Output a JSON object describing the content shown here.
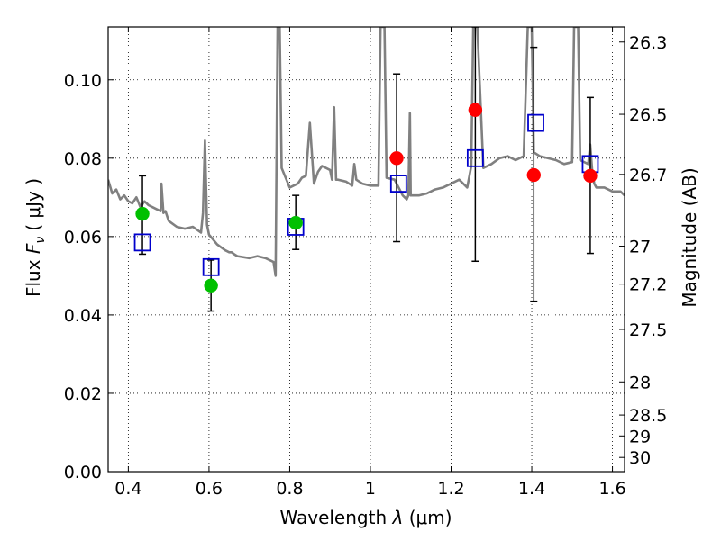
{
  "chart_data": {
    "type": "scatter",
    "xlabel_prefix": "Wavelength",
    "xlabel_symbol": "λ",
    "xlabel_unit": "(μm)",
    "ylabel_prefix": "Flux",
    "ylabel_symbol": "F",
    "ylabel_subscript": "ν",
    "ylabel_unit": "( μJy )",
    "y2label": "Magnitude (AB)",
    "xlim": [
      0.35,
      1.63
    ],
    "ylim": [
      0.0,
      0.1135
    ],
    "grid": true,
    "xticks": [
      {
        "v": 0.4,
        "label": "0.4"
      },
      {
        "v": 0.6,
        "label": "0.6"
      },
      {
        "v": 0.8,
        "label": "0.8"
      },
      {
        "v": 1.0,
        "label": "1"
      },
      {
        "v": 1.2,
        "label": "1.2"
      },
      {
        "v": 1.4,
        "label": "1.4"
      },
      {
        "v": 1.6,
        "label": "1.6"
      }
    ],
    "yticks": [
      {
        "v": 0.0,
        "label": "0.00"
      },
      {
        "v": 0.02,
        "label": "0.02"
      },
      {
        "v": 0.04,
        "label": "0.04"
      },
      {
        "v": 0.06,
        "label": "0.06"
      },
      {
        "v": 0.08,
        "label": "0.08"
      },
      {
        "v": 0.1,
        "label": "0.10"
      }
    ],
    "y2ticks": [
      {
        "mag": 26.3,
        "label": "26.3"
      },
      {
        "mag": 26.5,
        "label": "26.5"
      },
      {
        "mag": 26.7,
        "label": "26.7"
      },
      {
        "mag": 27,
        "label": "27"
      },
      {
        "mag": 27.2,
        "label": "27.2"
      },
      {
        "mag": 27.5,
        "label": "27.5"
      },
      {
        "mag": 28,
        "label": "28"
      },
      {
        "mag": 28.5,
        "label": "28.5"
      },
      {
        "mag": 29,
        "label": "29"
      },
      {
        "mag": 30,
        "label": "30"
      }
    ],
    "model_spectrum": {
      "color": "#808080",
      "x": [
        0.35,
        0.36,
        0.37,
        0.38,
        0.39,
        0.4,
        0.41,
        0.42,
        0.43,
        0.44,
        0.45,
        0.46,
        0.47,
        0.48,
        0.482,
        0.487,
        0.492,
        0.5,
        0.52,
        0.54,
        0.56,
        0.58,
        0.585,
        0.59,
        0.595,
        0.6,
        0.62,
        0.64,
        0.65,
        0.656,
        0.662,
        0.67,
        0.7,
        0.72,
        0.74,
        0.76,
        0.765,
        0.77,
        0.775,
        0.78,
        0.8,
        0.82,
        0.83,
        0.84,
        0.85,
        0.86,
        0.87,
        0.88,
        0.9,
        0.905,
        0.91,
        0.915,
        0.92,
        0.94,
        0.955,
        0.96,
        0.965,
        0.98,
        1.0,
        1.02,
        1.025,
        1.03,
        1.035,
        1.04,
        1.06,
        1.08,
        1.09,
        1.094,
        1.098,
        1.1,
        1.12,
        1.14,
        1.16,
        1.18,
        1.2,
        1.22,
        1.24,
        1.25,
        1.255,
        1.26,
        1.265,
        1.28,
        1.3,
        1.32,
        1.34,
        1.36,
        1.38,
        1.39,
        1.395,
        1.4,
        1.405,
        1.42,
        1.44,
        1.46,
        1.48,
        1.5,
        1.505,
        1.51,
        1.515,
        1.52,
        1.54,
        1.545,
        1.55,
        1.555,
        1.56,
        1.58,
        1.6,
        1.62,
        1.63
      ],
      "y": [
        0.0745,
        0.071,
        0.072,
        0.0695,
        0.0705,
        0.069,
        0.0685,
        0.07,
        0.0675,
        0.069,
        0.068,
        0.0675,
        0.067,
        0.0665,
        0.0735,
        0.066,
        0.0665,
        0.064,
        0.0625,
        0.062,
        0.0625,
        0.061,
        0.066,
        0.0845,
        0.063,
        0.0605,
        0.058,
        0.0565,
        0.056,
        0.056,
        0.0555,
        0.055,
        0.0545,
        0.055,
        0.0545,
        0.0535,
        0.05,
        0.1135,
        0.1135,
        0.0775,
        0.0725,
        0.0735,
        0.075,
        0.0755,
        0.089,
        0.0735,
        0.0765,
        0.078,
        0.077,
        0.0745,
        0.093,
        0.0745,
        0.0745,
        0.074,
        0.073,
        0.0785,
        0.0745,
        0.0735,
        0.073,
        0.073,
        0.1135,
        0.1135,
        0.1135,
        0.075,
        0.0745,
        0.0705,
        0.0695,
        0.0705,
        0.0915,
        0.0705,
        0.0705,
        0.071,
        0.072,
        0.0725,
        0.0735,
        0.0745,
        0.0725,
        0.078,
        0.1135,
        0.1135,
        0.1135,
        0.0775,
        0.0785,
        0.08,
        0.0805,
        0.0795,
        0.0805,
        0.1135,
        0.1135,
        0.1135,
        0.0815,
        0.0805,
        0.08,
        0.0795,
        0.0785,
        0.079,
        0.1135,
        0.1135,
        0.1135,
        0.0795,
        0.0785,
        0.0835,
        0.0765,
        0.0735,
        0.0725,
        0.0725,
        0.0715,
        0.0715,
        0.0705
      ]
    },
    "observed_points": [
      {
        "x": 0.435,
        "y": 0.0658,
        "yerr_low": 0.0555,
        "yerr_high": 0.0755,
        "color": "#00c000"
      },
      {
        "x": 0.605,
        "y": 0.0475,
        "yerr_low": 0.041,
        "yerr_high": 0.054,
        "color": "#00c000"
      },
      {
        "x": 0.815,
        "y": 0.0635,
        "yerr_low": 0.0567,
        "yerr_high": 0.0705,
        "color": "#00c000"
      },
      {
        "x": 1.065,
        "y": 0.08,
        "yerr_low": 0.0587,
        "yerr_high": 0.1015,
        "color": "#ff0000"
      },
      {
        "x": 1.26,
        "y": 0.0923,
        "yerr_low": 0.0537,
        "yerr_high": 0.1135,
        "color": "#ff0000"
      },
      {
        "x": 1.405,
        "y": 0.0757,
        "yerr_low": 0.0435,
        "yerr_high": 0.1083,
        "color": "#ff0000"
      },
      {
        "x": 1.545,
        "y": 0.0755,
        "yerr_low": 0.0557,
        "yerr_high": 0.0955,
        "color": "#ff0000"
      }
    ],
    "model_points": {
      "color": "#0000cc",
      "x": [
        0.435,
        0.605,
        0.815,
        1.07,
        1.26,
        1.41,
        1.545
      ],
      "y": [
        0.0585,
        0.0522,
        0.0625,
        0.0735,
        0.08,
        0.089,
        0.0785
      ]
    }
  }
}
